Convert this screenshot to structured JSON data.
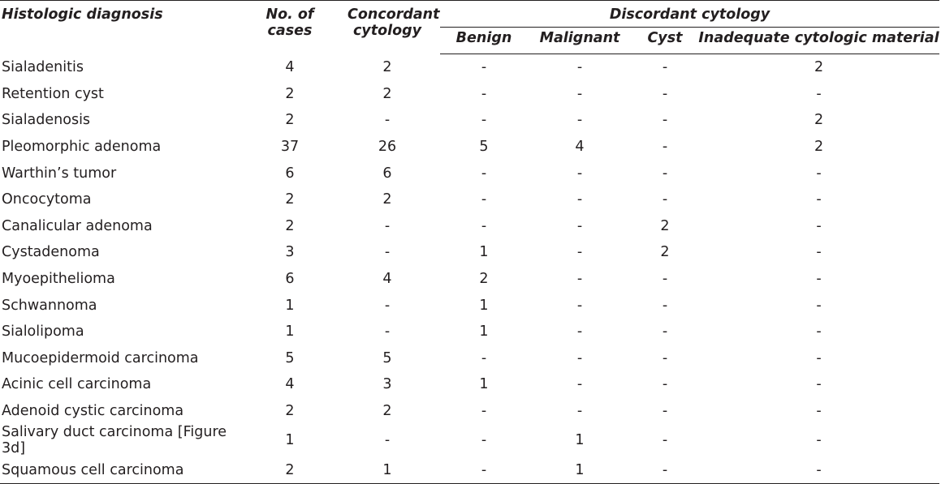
{
  "headers": {
    "histologic_diagnosis": "Histologic diagnosis",
    "no_of_cases": "No. of cases",
    "concordant_cytology": "Concordant cytology",
    "discordant_cytology": "Discordant cytology",
    "benign": "Benign",
    "malignant": "Malignant",
    "cyst": "Cyst",
    "inadequate": "Inadequate cytologic material"
  },
  "rows": [
    {
      "diagnosis": "Sialadenitis",
      "cases": "4",
      "concordant": "2",
      "benign": "-",
      "malignant": "-",
      "cyst": "-",
      "inadequate": "2"
    },
    {
      "diagnosis": "Retention cyst",
      "cases": "2",
      "concordant": "2",
      "benign": "-",
      "malignant": "-",
      "cyst": "-",
      "inadequate": "-"
    },
    {
      "diagnosis": "Sialadenosis",
      "cases": "2",
      "concordant": "-",
      "benign": "-",
      "malignant": "-",
      "cyst": "-",
      "inadequate": "2"
    },
    {
      "diagnosis": "Pleomorphic adenoma",
      "cases": "37",
      "concordant": "26",
      "benign": "5",
      "malignant": "4",
      "cyst": "-",
      "inadequate": "2"
    },
    {
      "diagnosis": "Warthin’s tumor",
      "cases": "6",
      "concordant": "6",
      "benign": "-",
      "malignant": "-",
      "cyst": "-",
      "inadequate": "-"
    },
    {
      "diagnosis": "Oncocytoma",
      "cases": "2",
      "concordant": "2",
      "benign": "-",
      "malignant": "-",
      "cyst": "-",
      "inadequate": "-"
    },
    {
      "diagnosis": "Canalicular adenoma",
      "cases": "2",
      "concordant": "-",
      "benign": "-",
      "malignant": "-",
      "cyst": "2",
      "inadequate": "-"
    },
    {
      "diagnosis": "Cystadenoma",
      "cases": "3",
      "concordant": "-",
      "benign": "1",
      "malignant": "-",
      "cyst": "2",
      "inadequate": "-"
    },
    {
      "diagnosis": "Myoepithelioma",
      "cases": "6",
      "concordant": "4",
      "benign": "2",
      "malignant": "-",
      "cyst": "-",
      "inadequate": "-"
    },
    {
      "diagnosis": "Schwannoma",
      "cases": "1",
      "concordant": "-",
      "benign": "1",
      "malignant": "-",
      "cyst": "-",
      "inadequate": "-"
    },
    {
      "diagnosis": "Sialolipoma",
      "cases": "1",
      "concordant": "-",
      "benign": "1",
      "malignant": "-",
      "cyst": "-",
      "inadequate": "-"
    },
    {
      "diagnosis": "Mucoepidermoid carcinoma",
      "cases": "5",
      "concordant": "5",
      "benign": "-",
      "malignant": "-",
      "cyst": "-",
      "inadequate": "-"
    },
    {
      "diagnosis": "Acinic cell carcinoma",
      "cases": "4",
      "concordant": "3",
      "benign": "1",
      "malignant": "-",
      "cyst": "-",
      "inadequate": "-"
    },
    {
      "diagnosis": "Adenoid cystic carcinoma",
      "cases": "2",
      "concordant": "2",
      "benign": "-",
      "malignant": "-",
      "cyst": "-",
      "inadequate": "-"
    },
    {
      "diagnosis": "Salivary duct carcinoma [Figure 3d]",
      "cases": "1",
      "concordant": "-",
      "benign": "-",
      "malignant": "1",
      "cyst": "-",
      "inadequate": "-"
    },
    {
      "diagnosis": "Squamous cell carcinoma",
      "cases": "2",
      "concordant": "1",
      "benign": "-",
      "malignant": "1",
      "cyst": "-",
      "inadequate": "-"
    }
  ]
}
